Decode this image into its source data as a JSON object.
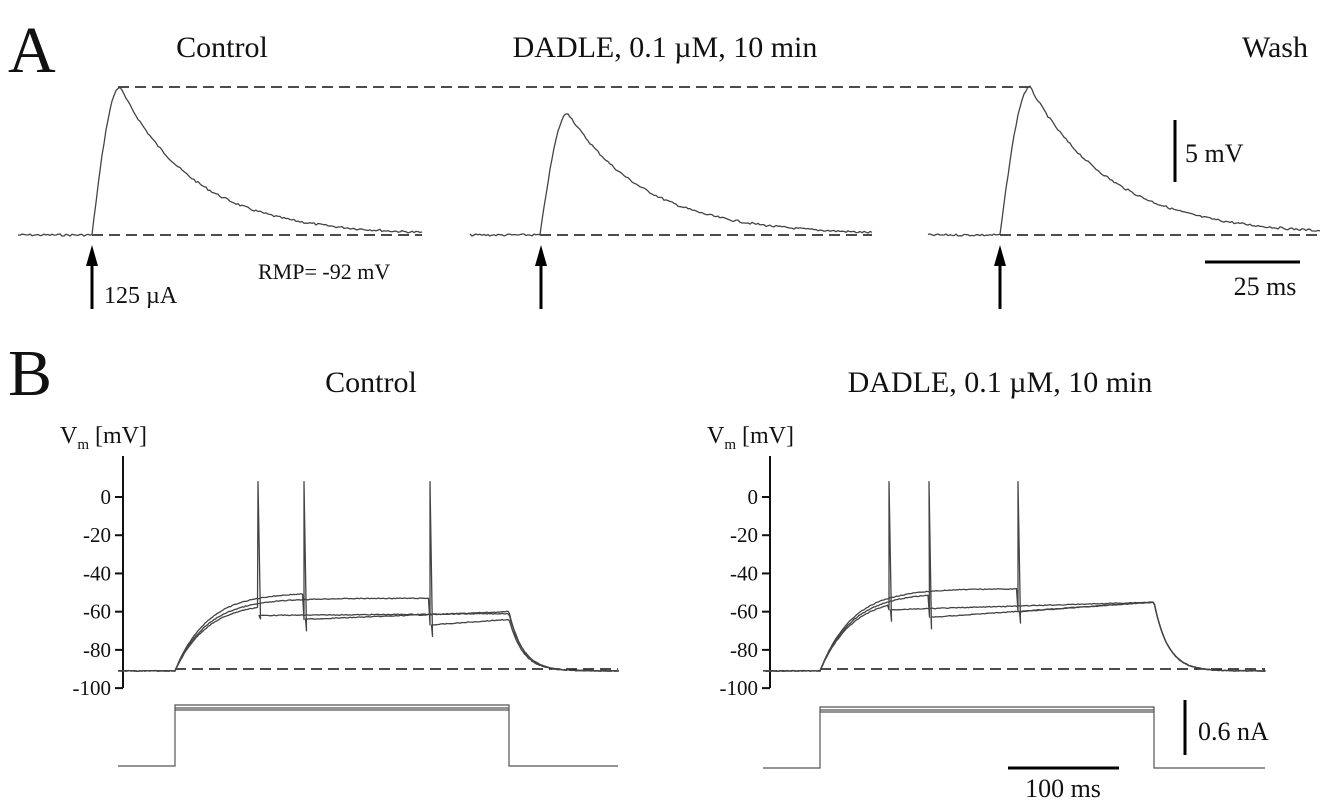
{
  "panel_a": {
    "label": "A",
    "titles": {
      "control": "Control",
      "dadle": "DADLE, 0.1 µM, 10 min",
      "wash": "Wash"
    },
    "stimulus_label": "125 µA",
    "rmp_label": "RMP= -92 mV",
    "scale_voltage_label": "5 mV",
    "scale_time_label": "25 ms"
  },
  "panel_b": {
    "label": "B",
    "titles": {
      "control": "Control",
      "dadle": "DADLE, 0.1 µM, 10 min"
    },
    "ylabel_main": "V",
    "ylabel_sub": "m",
    "ylabel_unit": "[mV]",
    "yticks": [
      "0",
      "-20",
      "-40",
      "-60",
      "-80",
      "-100"
    ],
    "scale_current_label": "0.6 nA",
    "scale_time_label": "100 ms"
  },
  "chart_data": [
    {
      "type": "line",
      "panel": "A",
      "description_units": "mV relative to resting potential vs ms",
      "resting_potential_mV": -92,
      "stimulus_uA": 125,
      "series": [
        {
          "name": "Control",
          "peak_mV": 10.3,
          "time_to_peak_ms": 5
        },
        {
          "name": "DADLE, 0.1 µM, 10 min",
          "peak_mV": 8.3,
          "time_to_peak_ms": 6
        },
        {
          "name": "Wash",
          "peak_mV": 10.3,
          "time_to_peak_ms": 6
        }
      ]
    },
    {
      "type": "line",
      "panel": "B",
      "ylim": [
        -100,
        0
      ],
      "yticks": [
        0,
        -20,
        -40,
        -60,
        -80,
        -100
      ],
      "baseline_mV": -91,
      "series": [
        {
          "name": "Control",
          "spike_times_ms": [
            150,
            180,
            275
          ],
          "plateau_mV": -61
        },
        {
          "name": "DADLE, 0.1 µM, 10 min",
          "spike_times_ms": [
            115,
            140,
            205
          ],
          "plateau_mV": -55
        }
      ]
    }
  ]
}
